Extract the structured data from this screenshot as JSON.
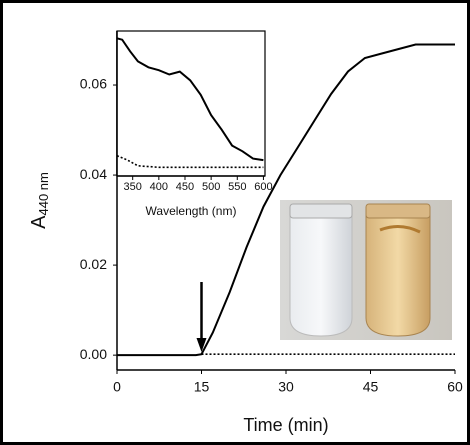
{
  "chart_data": [
    {
      "type": "line",
      "xlabel": "Time (min)",
      "ylabel": "A",
      "ylabel_sub": "440 nm",
      "xlim": [
        0,
        60
      ],
      "ylim": [
        -0.0033,
        0.072
      ],
      "xticks": [
        0,
        15,
        30,
        45,
        60
      ],
      "yticks": [
        {
          "value": 0,
          "label": "0.00"
        },
        {
          "value": 0.02,
          "label": "0.02"
        },
        {
          "value": 0.04,
          "label": "0.04"
        },
        {
          "value": 0.06,
          "label": "0.06"
        }
      ],
      "series": [
        {
          "color": "#000000",
          "style": "solid",
          "x": [
            0,
            14,
            15,
            17,
            20,
            23,
            26,
            29,
            32,
            35,
            38,
            41,
            44,
            47,
            50,
            53,
            56,
            60
          ],
          "values": [
            0,
            0,
            0.0002,
            0.005,
            0.014,
            0.024,
            0.033,
            0.04,
            0.046,
            0.052,
            0.058,
            0.063,
            0.066,
            0.067,
            0.068,
            0.069,
            0.069,
            0.069
          ]
        },
        {
          "color": "#000000",
          "style": "dotted",
          "x": [
            15,
            30,
            45,
            60
          ],
          "values": [
            0.0002,
            0.0002,
            0.0002,
            0.0002
          ]
        }
      ]
    },
    {
      "type": "line",
      "xlabel": "Wavelength (nm)",
      "xlim": [
        320,
        603
      ],
      "ylim": [
        0,
        1
      ],
      "xticks": [
        350,
        400,
        450,
        500,
        550,
        600
      ],
      "series": [
        {
          "color": "#000000",
          "style": "solid",
          "x": [
            320,
            330,
            345,
            360,
            380,
            400,
            420,
            440,
            460,
            480,
            500,
            520,
            540,
            560,
            580,
            600
          ],
          "values": [
            0.95,
            0.94,
            0.86,
            0.79,
            0.75,
            0.73,
            0.7,
            0.72,
            0.66,
            0.56,
            0.42,
            0.32,
            0.21,
            0.17,
            0.12,
            0.11
          ]
        },
        {
          "color": "#000000",
          "style": "dotted",
          "x": [
            320,
            340,
            360,
            400,
            450,
            500,
            550,
            600
          ],
          "values": [
            0.14,
            0.11,
            0.07,
            0.06,
            0.06,
            0.06,
            0.06,
            0.06
          ]
        }
      ]
    }
  ]
}
